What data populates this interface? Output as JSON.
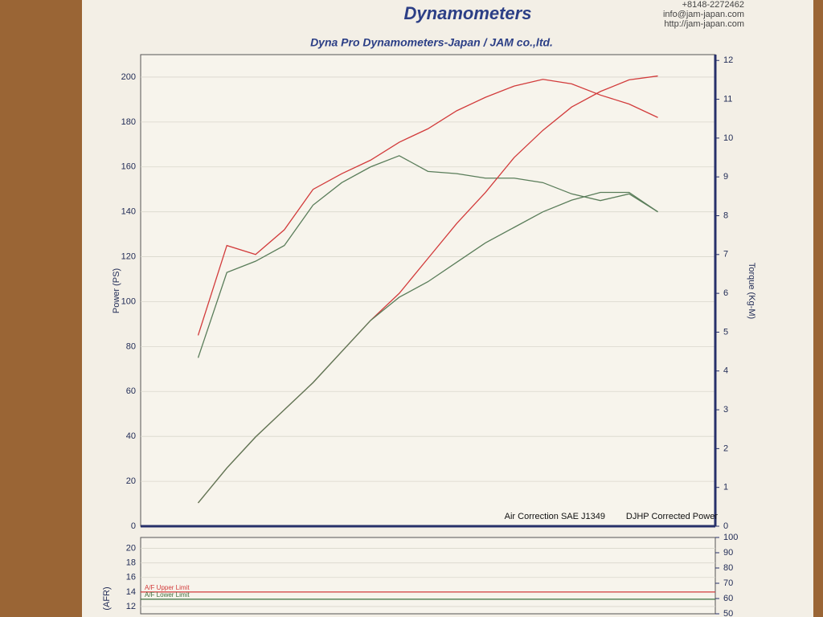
{
  "header": {
    "brand": "Dynamometers",
    "phone": "+8148-2272462",
    "email": "info@jam-japan.com",
    "url": "http://jam-japan.com"
  },
  "chart_data": [
    {
      "type": "line",
      "title": "Dyna Pro Dynamometers-Japan / JAM co.,ltd.",
      "ylabel": "Power (PS)",
      "y2label": "Torque (Kg-M)",
      "annotations": [
        "Air Correction SAE J1349",
        "DJHP Corrected Power"
      ],
      "categories": [
        null,
        null,
        null,
        null,
        null,
        null,
        null,
        null,
        null,
        null,
        null,
        null,
        null,
        null,
        null,
        null,
        null,
        null,
        null,
        null,
        null
      ],
      "series": [
        {
          "color": "#d23b3b",
          "values": [
            null,
            null,
            85,
            125,
            121,
            132,
            150,
            157,
            163,
            171,
            177,
            185,
            191,
            196,
            199,
            197,
            192,
            188,
            182,
            null,
            null
          ]
        },
        {
          "color": "#5a7d5a",
          "values": [
            null,
            null,
            75,
            113,
            118,
            125,
            143,
            153,
            160,
            165,
            158,
            157,
            155,
            155,
            153,
            148,
            145,
            148,
            140,
            null,
            null
          ]
        },
        {
          "color": "#d23b3b",
          "axis": "y2",
          "values": [
            null,
            null,
            0.6,
            1.5,
            2.3,
            3.0,
            3.7,
            4.5,
            5.3,
            6.0,
            6.9,
            7.8,
            8.6,
            9.5,
            10.2,
            10.8,
            11.2,
            11.5,
            11.6,
            null,
            null
          ]
        },
        {
          "color": "#5a7d5a",
          "axis": "y2",
          "values": [
            null,
            null,
            0.6,
            1.5,
            2.3,
            3.0,
            3.7,
            4.5,
            5.3,
            5.9,
            6.3,
            6.8,
            7.3,
            7.7,
            8.1,
            8.4,
            8.6,
            8.6,
            8.1,
            null,
            null
          ]
        }
      ],
      "ylim": [
        0,
        210
      ],
      "yticks": [
        0,
        20,
        40,
        60,
        80,
        100,
        120,
        140,
        160,
        180,
        200
      ],
      "y2lim": [
        0,
        12.15
      ],
      "y2ticks": [
        0,
        1,
        2,
        3,
        4,
        5,
        6,
        7,
        8,
        9,
        10,
        11,
        12
      ],
      "grid": true
    },
    {
      "type": "line",
      "ylabel": "(AFR)",
      "categories": [
        null,
        null,
        null,
        null,
        null,
        null,
        null,
        null,
        null,
        null,
        null,
        null,
        null,
        null,
        null,
        null,
        null,
        null,
        null,
        null,
        null
      ],
      "series": [
        {
          "name": "A/F Upper Limit",
          "color": "#d23b3b",
          "values": [
            14,
            14,
            14,
            14,
            14,
            14,
            14,
            14,
            14,
            14,
            14,
            14,
            14,
            14,
            14,
            14,
            14,
            14,
            14,
            14,
            14
          ]
        },
        {
          "name": "A/F Lower Limit",
          "color": "#3f6f3f",
          "values": [
            13,
            13,
            13,
            13,
            13,
            13,
            13,
            13,
            13,
            13,
            13,
            13,
            13,
            13,
            13,
            13,
            13,
            13,
            13,
            13,
            13
          ]
        }
      ],
      "ylim": [
        11,
        21.5
      ],
      "yticks": [
        12,
        14,
        16,
        18,
        20
      ],
      "y2lim": [
        50,
        100
      ],
      "y2ticks": [
        50,
        60,
        70,
        80,
        90,
        100
      ],
      "grid": true
    }
  ]
}
